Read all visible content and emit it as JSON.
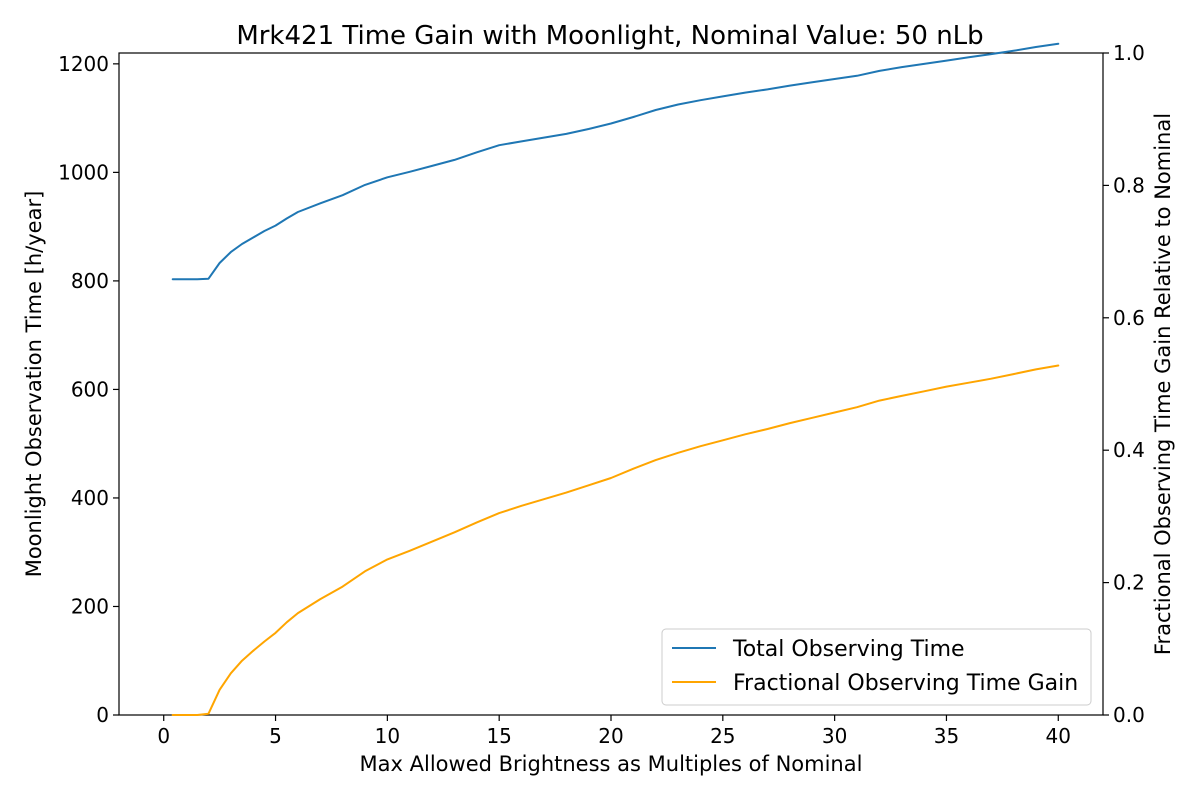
{
  "chart_data": {
    "type": "line",
    "title": "Mrk421 Time Gain with Moonlight, Nominal Value: 50 nLb",
    "xlabel": "Max Allowed Brightness as Multiples of Nominal",
    "ylabel": "Moonlight Observation Time [h/year]",
    "y2label": "Fractional Observing Time Gain Relative to Nominal",
    "xlim": [
      -2,
      42
    ],
    "ylim": [
      0,
      1220
    ],
    "y2lim": [
      0,
      1.0
    ],
    "x_ticks": [
      "0",
      "5",
      "10",
      "15",
      "20",
      "25",
      "30",
      "35",
      "40"
    ],
    "y_ticks": [
      "0",
      "200",
      "400",
      "600",
      "800",
      "1000",
      "1200"
    ],
    "y2_ticks": [
      "0.0",
      "0.2",
      "0.4",
      "0.6",
      "0.8",
      "1.0"
    ],
    "grid": false,
    "legend_position": "lower-right",
    "series": [
      {
        "name": "Total Observing Time",
        "axis": "left",
        "color": "#1f77b4",
        "x": [
          0.4,
          1.0,
          1.5,
          2.0,
          2.5,
          3.0,
          3.5,
          4.0,
          4.5,
          5.0,
          5.5,
          6.0,
          7.0,
          8.0,
          9.0,
          10.0,
          11.0,
          12.0,
          13.0,
          14.0,
          15.0,
          16.0,
          17.0,
          18.0,
          19.0,
          20.0,
          21.0,
          22.0,
          23.0,
          24.0,
          25.0,
          26.0,
          27.0,
          28.0,
          29.0,
          30.0,
          31.0,
          32.0,
          33.0,
          34.0,
          35.0,
          36.0,
          37.0,
          38.0,
          39.0,
          40.0
        ],
        "y": [
          803,
          803,
          803,
          804,
          833,
          853,
          868,
          880,
          892,
          902,
          915,
          927,
          943,
          958,
          977,
          991,
          1001,
          1012,
          1023,
          1037,
          1050,
          1057,
          1064,
          1071,
          1080,
          1090,
          1102,
          1115,
          1125,
          1133,
          1140,
          1147,
          1153,
          1160,
          1166,
          1172,
          1178,
          1187,
          1194,
          1200,
          1206,
          1212,
          1218,
          1224,
          1231,
          1237
        ]
      },
      {
        "name": "Fractional Observing Time Gain",
        "axis": "right",
        "color": "#ffa500",
        "x": [
          0.4,
          1.0,
          1.5,
          2.0,
          2.5,
          3.0,
          3.5,
          4.0,
          4.5,
          5.0,
          5.5,
          6.0,
          7.0,
          8.0,
          9.0,
          10.0,
          11.0,
          12.0,
          13.0,
          14.0,
          15.0,
          16.0,
          17.0,
          18.0,
          19.0,
          20.0,
          21.0,
          22.0,
          23.0,
          24.0,
          25.0,
          26.0,
          27.0,
          28.0,
          29.0,
          30.0,
          31.0,
          32.0,
          33.0,
          34.0,
          35.0,
          36.0,
          37.0,
          38.0,
          39.0,
          40.0
        ],
        "y": [
          0.0,
          0.0,
          0.0,
          0.002,
          0.038,
          0.063,
          0.082,
          0.097,
          0.111,
          0.124,
          0.14,
          0.154,
          0.175,
          0.194,
          0.217,
          0.235,
          0.248,
          0.262,
          0.276,
          0.291,
          0.305,
          0.316,
          0.326,
          0.336,
          0.347,
          0.358,
          0.372,
          0.385,
          0.396,
          0.406,
          0.415,
          0.424,
          0.432,
          0.441,
          0.449,
          0.457,
          0.465,
          0.475,
          0.482,
          0.489,
          0.496,
          0.502,
          0.508,
          0.515,
          0.522,
          0.528
        ]
      }
    ]
  }
}
